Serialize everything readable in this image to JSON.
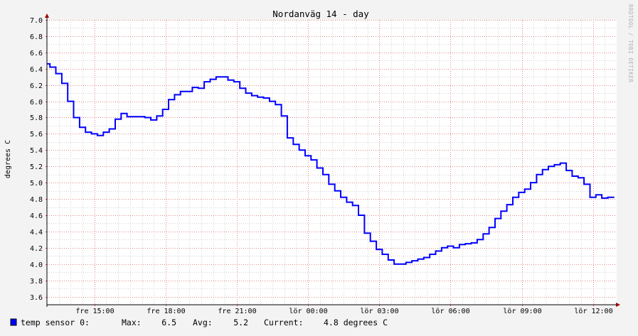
{
  "chart_data": {
    "type": "line",
    "title": "Nordanväg 14 - day",
    "ylabel": "degrees C",
    "xlabel": "",
    "watermark": "RRDTOOL / TOBI OETIKER",
    "ylim": [
      3.5,
      7.0
    ],
    "y_ticks": [
      "3.6",
      "3.8",
      "4.0",
      "4.2",
      "4.4",
      "4.6",
      "4.8",
      "5.0",
      "5.2",
      "5.4",
      "5.6",
      "5.8",
      "6.0",
      "6.2",
      "6.4",
      "6.6",
      "6.8",
      "7.0"
    ],
    "x_range_hours": [
      0,
      24
    ],
    "x_ticks": [
      {
        "label": "fre 15:00",
        "hour": 2
      },
      {
        "label": "fre 18:00",
        "hour": 5
      },
      {
        "label": "fre 21:00",
        "hour": 8
      },
      {
        "label": "lör 00:00",
        "hour": 11
      },
      {
        "label": "lör 03:00",
        "hour": 14
      },
      {
        "label": "lör 06:00",
        "hour": 17
      },
      {
        "label": "lör 09:00",
        "hour": 20
      },
      {
        "label": "lör 12:00",
        "hour": 23
      }
    ],
    "grid": true,
    "line_color": "#0000ff",
    "series": [
      {
        "name": "temp sensor 0:",
        "color": "#0000ff",
        "x": [
          0.0,
          0.25,
          0.5,
          0.75,
          1.0,
          1.25,
          1.5,
          1.75,
          2.0,
          2.25,
          2.5,
          2.75,
          3.0,
          3.25,
          3.5,
          3.75,
          4.0,
          4.25,
          4.5,
          4.75,
          5.0,
          5.25,
          5.5,
          5.75,
          6.0,
          6.25,
          6.5,
          6.75,
          7.0,
          7.25,
          7.5,
          7.75,
          8.0,
          8.25,
          8.5,
          8.75,
          9.0,
          9.25,
          9.5,
          9.75,
          10.0,
          10.25,
          10.5,
          10.75,
          11.0,
          11.25,
          11.5,
          11.75,
          12.0,
          12.25,
          12.5,
          12.75,
          13.0,
          13.25,
          13.5,
          13.75,
          14.0,
          14.25,
          14.5,
          14.75,
          15.0,
          15.25,
          15.5,
          15.75,
          16.0,
          16.25,
          16.5,
          16.75,
          17.0,
          17.25,
          17.5,
          17.75,
          18.0,
          18.25,
          18.5,
          18.75,
          19.0,
          19.25,
          19.5,
          19.75,
          20.0,
          20.25,
          20.5,
          20.75,
          21.0,
          21.25,
          21.5,
          21.75,
          22.0,
          22.25,
          22.5,
          22.75,
          23.0,
          23.25,
          23.5,
          23.75,
          23.9
        ],
        "values": [
          6.46,
          6.42,
          6.34,
          6.22,
          6.0,
          5.8,
          5.68,
          5.62,
          5.6,
          5.58,
          5.62,
          5.66,
          5.78,
          5.85,
          5.81,
          5.81,
          5.81,
          5.8,
          5.77,
          5.82,
          5.9,
          6.02,
          6.08,
          6.12,
          6.12,
          6.17,
          6.16,
          6.24,
          6.27,
          6.3,
          6.3,
          6.26,
          6.24,
          6.16,
          6.1,
          6.07,
          6.05,
          6.04,
          6.0,
          5.96,
          5.82,
          5.55,
          5.47,
          5.4,
          5.33,
          5.28,
          5.18,
          5.1,
          4.98,
          4.9,
          4.82,
          4.76,
          4.72,
          4.6,
          4.38,
          4.28,
          4.18,
          4.12,
          4.05,
          4.0,
          4.0,
          4.02,
          4.04,
          4.06,
          4.08,
          4.12,
          4.16,
          4.2,
          4.22,
          4.2,
          4.24,
          4.25,
          4.26,
          4.3,
          4.37,
          4.45,
          4.56,
          4.65,
          4.73,
          4.82,
          4.88,
          4.92,
          5.0,
          5.1,
          5.16,
          5.2,
          5.22,
          5.24,
          5.15,
          5.08,
          5.06,
          4.98,
          4.82,
          4.85,
          4.81,
          4.82,
          4.82
        ]
      }
    ],
    "legend": {
      "position": "bottom-left",
      "label": "temp sensor 0:",
      "max_label": "Max:",
      "max_value": "6.5",
      "avg_label": "Avg:",
      "avg_value": "5.2",
      "current_label": "Current:",
      "current_value": "4.8 degrees C"
    }
  }
}
